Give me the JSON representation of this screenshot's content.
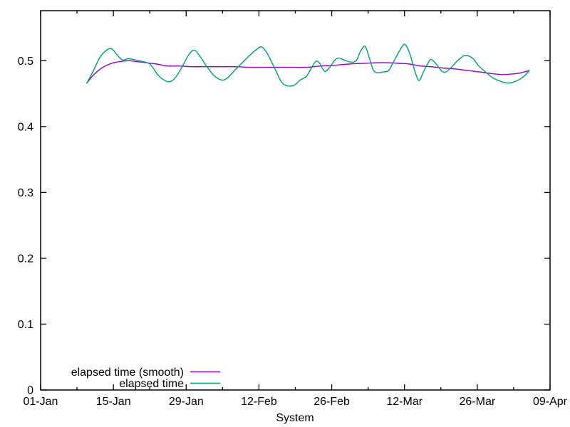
{
  "figure": {
    "background": "#ffffff",
    "border_color": "#000000",
    "text_color": "#000000"
  },
  "chart_data": {
    "type": "line",
    "title": "",
    "xlabel": "System",
    "ylabel": "",
    "grid": false,
    "legend_position": "inside-bottom-left",
    "x_axis": {
      "range_days": [
        0,
        98
      ],
      "major_ticks": [
        {
          "day": 0,
          "label": "01-Jan"
        },
        {
          "day": 14,
          "label": "15-Jan"
        },
        {
          "day": 28,
          "label": "29-Jan"
        },
        {
          "day": 42,
          "label": "12-Feb"
        },
        {
          "day": 56,
          "label": "26-Feb"
        },
        {
          "day": 70,
          "label": "12-Mar"
        },
        {
          "day": 84,
          "label": "26-Mar"
        },
        {
          "day": 98,
          "label": "09-Apr"
        }
      ],
      "minor_tick_days": [
        7,
        21,
        35,
        49,
        63,
        77,
        91
      ],
      "ticks_mirrored_on_top": true
    },
    "y_axis": {
      "range": [
        0,
        0.576
      ],
      "major_ticks": [
        {
          "value": 0,
          "label": "0"
        },
        {
          "value": 0.1,
          "label": "0.1"
        },
        {
          "value": 0.2,
          "label": "0.2"
        },
        {
          "value": 0.3,
          "label": "0.3"
        },
        {
          "value": 0.4,
          "label": "0.4"
        },
        {
          "value": 0.5,
          "label": "0.5"
        }
      ],
      "ticks_mirrored_on_right": true
    },
    "series": [
      {
        "name": "elapsed time (smooth)",
        "color": "#9400d3",
        "points": [
          [
            8.9,
            0.466
          ],
          [
            10.0,
            0.477
          ],
          [
            11.4,
            0.487
          ],
          [
            12.7,
            0.493
          ],
          [
            14.1,
            0.497
          ],
          [
            15.5,
            0.499
          ],
          [
            16.9,
            0.5
          ],
          [
            18.2,
            0.499
          ],
          [
            20.3,
            0.497
          ],
          [
            22.3,
            0.495
          ],
          [
            24.4,
            0.492
          ],
          [
            26.5,
            0.492
          ],
          [
            29.2,
            0.491
          ],
          [
            31.9,
            0.491
          ],
          [
            34.7,
            0.491
          ],
          [
            37.4,
            0.491
          ],
          [
            40.2,
            0.49
          ],
          [
            42.9,
            0.49
          ],
          [
            45.6,
            0.49
          ],
          [
            48.4,
            0.49
          ],
          [
            51.1,
            0.49
          ],
          [
            53.9,
            0.492
          ],
          [
            56.6,
            0.493
          ],
          [
            59.3,
            0.495
          ],
          [
            62.1,
            0.496
          ],
          [
            64.8,
            0.497
          ],
          [
            66.9,
            0.497
          ],
          [
            68.9,
            0.496
          ],
          [
            71.0,
            0.495
          ],
          [
            73.0,
            0.492
          ],
          [
            75.1,
            0.491
          ],
          [
            77.2,
            0.489
          ],
          [
            79.2,
            0.488
          ],
          [
            81.3,
            0.486
          ],
          [
            83.3,
            0.484
          ],
          [
            85.4,
            0.482
          ],
          [
            87.2,
            0.48
          ],
          [
            89.0,
            0.479
          ],
          [
            90.9,
            0.48
          ],
          [
            92.0,
            0.481
          ],
          [
            93.0,
            0.483
          ],
          [
            94.0,
            0.485
          ]
        ]
      },
      {
        "name": "elapsed time",
        "color": "#009e73",
        "points": [
          [
            8.9,
            0.466
          ],
          [
            10.1,
            0.484
          ],
          [
            11.4,
            0.505
          ],
          [
            12.7,
            0.516
          ],
          [
            13.7,
            0.518
          ],
          [
            14.8,
            0.508
          ],
          [
            15.8,
            0.501
          ],
          [
            16.9,
            0.503
          ],
          [
            18.9,
            0.5
          ],
          [
            21.0,
            0.495
          ],
          [
            22.6,
            0.478
          ],
          [
            23.7,
            0.471
          ],
          [
            24.7,
            0.468
          ],
          [
            25.8,
            0.473
          ],
          [
            27.1,
            0.489
          ],
          [
            28.5,
            0.509
          ],
          [
            29.6,
            0.516
          ],
          [
            30.8,
            0.505
          ],
          [
            31.9,
            0.492
          ],
          [
            33.3,
            0.478
          ],
          [
            34.7,
            0.471
          ],
          [
            35.8,
            0.473
          ],
          [
            37.4,
            0.486
          ],
          [
            38.8,
            0.497
          ],
          [
            40.2,
            0.508
          ],
          [
            41.5,
            0.517
          ],
          [
            42.5,
            0.521
          ],
          [
            43.6,
            0.511
          ],
          [
            45.0,
            0.489
          ],
          [
            46.3,
            0.468
          ],
          [
            47.4,
            0.462
          ],
          [
            48.8,
            0.463
          ],
          [
            50.0,
            0.471
          ],
          [
            51.1,
            0.476
          ],
          [
            52.1,
            0.489
          ],
          [
            52.9,
            0.499
          ],
          [
            53.6,
            0.497
          ],
          [
            54.6,
            0.484
          ],
          [
            55.5,
            0.489
          ],
          [
            56.6,
            0.501
          ],
          [
            57.4,
            0.504
          ],
          [
            58.4,
            0.501
          ],
          [
            59.6,
            0.498
          ],
          [
            60.7,
            0.5
          ],
          [
            61.5,
            0.514
          ],
          [
            62.4,
            0.522
          ],
          [
            63.2,
            0.505
          ],
          [
            64.0,
            0.486
          ],
          [
            64.8,
            0.482
          ],
          [
            65.9,
            0.483
          ],
          [
            66.9,
            0.485
          ],
          [
            67.8,
            0.497
          ],
          [
            68.9,
            0.513
          ],
          [
            70.0,
            0.525
          ],
          [
            71.0,
            0.511
          ],
          [
            72.0,
            0.484
          ],
          [
            72.8,
            0.47
          ],
          [
            73.7,
            0.484
          ],
          [
            74.7,
            0.499
          ],
          [
            75.2,
            0.502
          ],
          [
            76.1,
            0.495
          ],
          [
            77.2,
            0.484
          ],
          [
            78.0,
            0.483
          ],
          [
            78.9,
            0.489
          ],
          [
            80.2,
            0.5
          ],
          [
            81.3,
            0.507
          ],
          [
            82.1,
            0.508
          ],
          [
            83.2,
            0.503
          ],
          [
            84.3,
            0.492
          ],
          [
            85.7,
            0.482
          ],
          [
            87.0,
            0.474
          ],
          [
            88.4,
            0.469
          ],
          [
            89.8,
            0.466
          ],
          [
            91.1,
            0.468
          ],
          [
            92.2,
            0.472
          ],
          [
            93.2,
            0.478
          ],
          [
            94.0,
            0.485
          ]
        ]
      }
    ]
  }
}
